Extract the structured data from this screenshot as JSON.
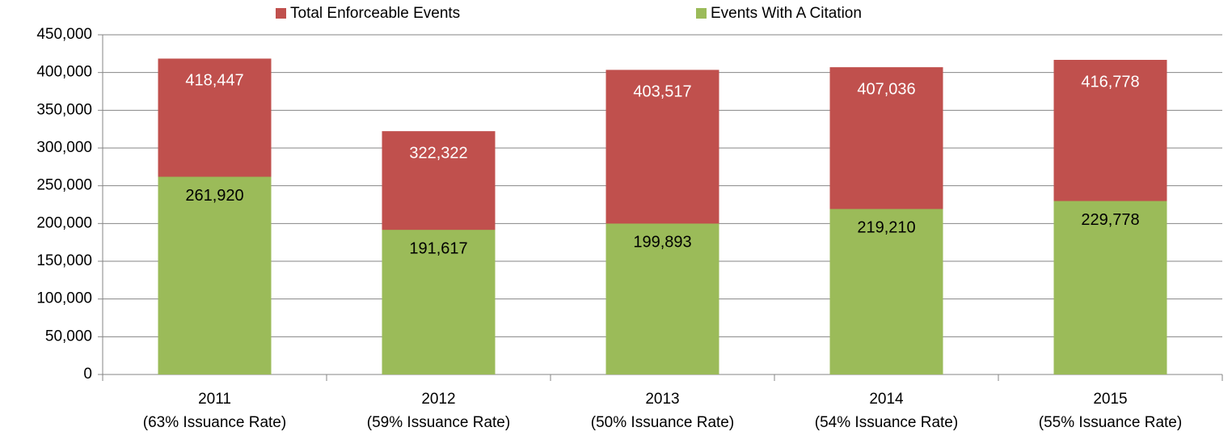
{
  "chart_data": {
    "type": "overlap_bar",
    "categories": [
      [
        "2011",
        "(63% Issuance Rate)"
      ],
      [
        "2012",
        "(59% Issuance Rate)"
      ],
      [
        "2013",
        "(50% Issuance Rate)"
      ],
      [
        "2014",
        "(54% Issuance Rate)"
      ],
      [
        "2015",
        "(55% Issuance Rate)"
      ]
    ],
    "series": [
      {
        "name": "Total Enforceable Events",
        "color": "#c0504d",
        "label_color": "#ffffff",
        "values": [
          418447,
          322322,
          403517,
          407036,
          416778
        ],
        "value_labels": [
          "418,447",
          "322,322",
          "403,517",
          "407,036",
          "416,778"
        ]
      },
      {
        "name": "Events With A Citation",
        "color": "#9bbb59",
        "label_color": "#000000",
        "values": [
          261920,
          191617,
          199893,
          219210,
          229778
        ],
        "value_labels": [
          "261,920",
          "191,617",
          "199,893",
          "219,210",
          "229,778"
        ]
      }
    ],
    "ylim": [
      0,
      450000
    ],
    "yticks": [
      0,
      {
        "value": 50000,
        "label": "50,000"
      },
      {
        "value": 100000,
        "label": "100,000"
      },
      {
        "value": 150000,
        "label": "150,000"
      },
      {
        "value": 200000,
        "label": "200,000"
      },
      {
        "value": 250000,
        "label": "250,000"
      },
      {
        "value": 300000,
        "label": "300,000"
      },
      {
        "value": 350000,
        "label": "350,000"
      },
      {
        "value": 400000,
        "label": "400,000"
      },
      {
        "value": 450000,
        "label": "450,000"
      }
    ],
    "grid": true,
    "legend": "top"
  }
}
